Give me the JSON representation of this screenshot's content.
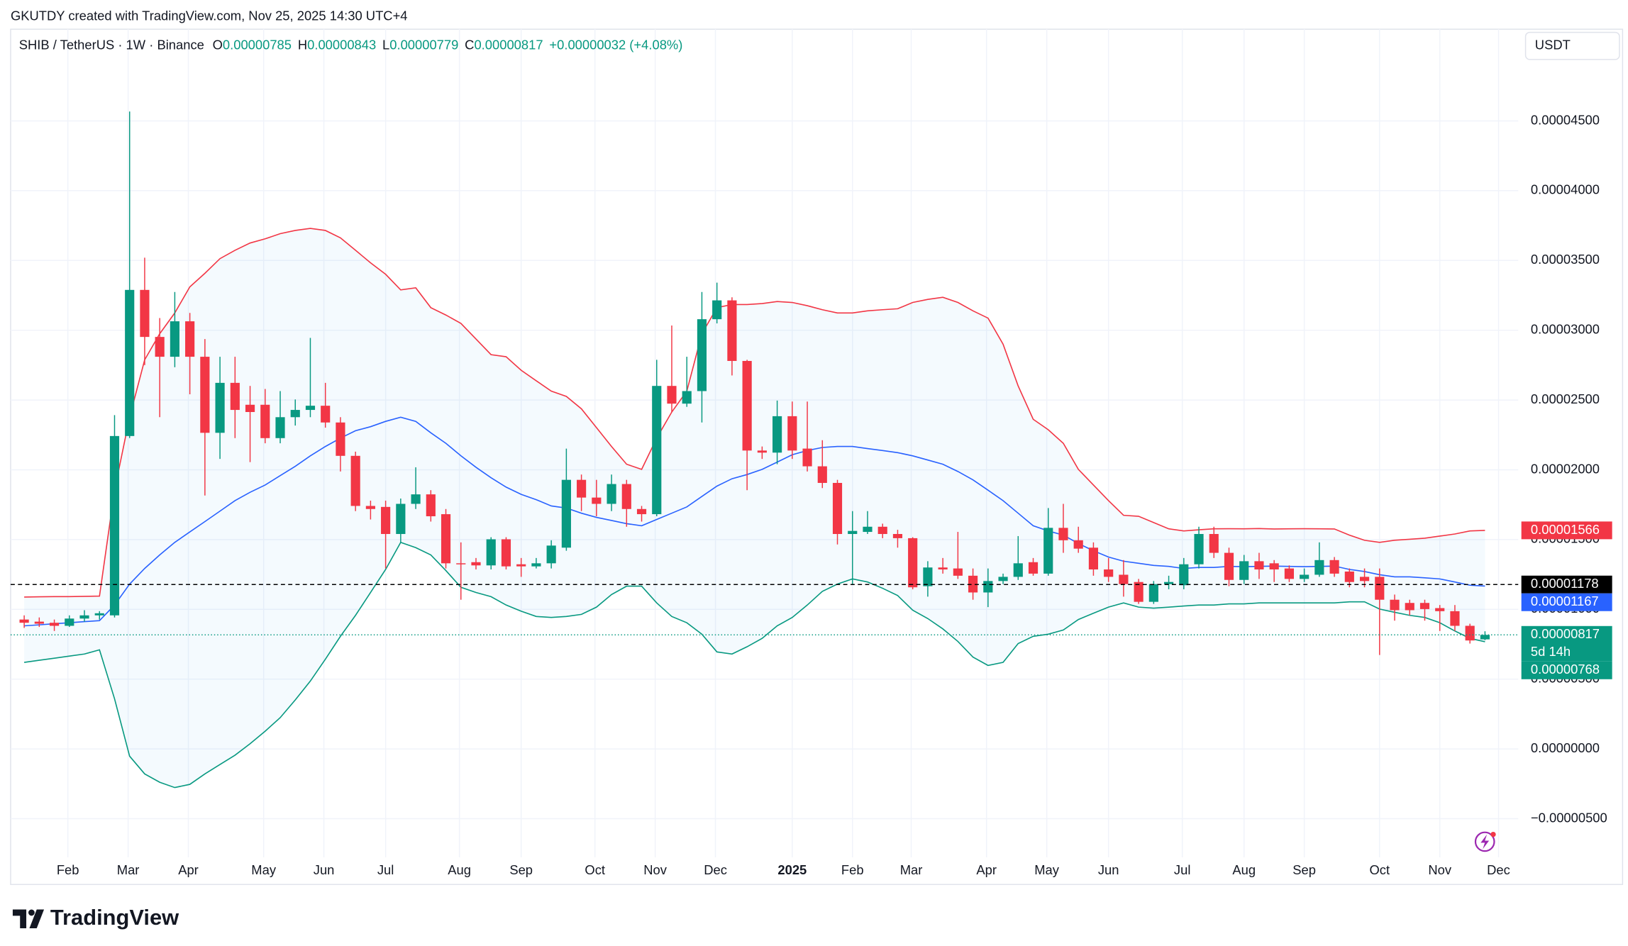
{
  "chart_data": {
    "type": "candlestick",
    "watermark": "GKUTDY created with TradingView.com, Nov 25, 2025 14:30 UTC+4",
    "title": "SHIB / TetherUS · 1W · Binance",
    "ohlc_legend": [
      {
        "key": "O",
        "value": "0.00000785"
      },
      {
        "key": "H",
        "value": "0.00000843"
      },
      {
        "key": "L",
        "value": "0.00000779"
      },
      {
        "key": "C",
        "value": "0.00000817"
      }
    ],
    "change": "+0.00000032 (+4.08%)",
    "currency": "USDT",
    "logo": "TradingView",
    "up_color": "#089981",
    "down_color": "#f23645",
    "xlim": [
      -0.9,
      99
    ],
    "xticks": [
      {
        "value": 2.9,
        "label": "Feb"
      },
      {
        "value": 6.9,
        "label": "Mar"
      },
      {
        "value": 10.9,
        "label": "Apr"
      },
      {
        "value": 15.9,
        "label": "May"
      },
      {
        "value": 19.9,
        "label": "Jun"
      },
      {
        "value": 24.0,
        "label": "Jul"
      },
      {
        "value": 28.9,
        "label": "Aug"
      },
      {
        "value": 33.0,
        "label": "Sep"
      },
      {
        "value": 37.9,
        "label": "Oct"
      },
      {
        "value": 41.9,
        "label": "Nov"
      },
      {
        "value": 45.9,
        "label": "Dec"
      },
      {
        "value": 51.0,
        "label": "2025"
      },
      {
        "value": 55.0,
        "label": "Feb"
      },
      {
        "value": 58.9,
        "label": "Mar"
      },
      {
        "value": 63.9,
        "label": "Apr"
      },
      {
        "value": 67.9,
        "label": "May"
      },
      {
        "value": 72.0,
        "label": "Jun"
      },
      {
        "value": 76.9,
        "label": "Jul"
      },
      {
        "value": 81.0,
        "label": "Aug"
      },
      {
        "value": 85.0,
        "label": "Sep"
      },
      {
        "value": 90.0,
        "label": "Oct"
      },
      {
        "value": 94.0,
        "label": "Nov"
      },
      {
        "value": 97.9,
        "label": "Dec"
      }
    ],
    "ylim": [
      -7.62e-06,
      5.157e-05
    ],
    "yticks": [
      {
        "value": -5e-06,
        "label": "−0.00000500"
      },
      {
        "value": 0,
        "label": "0.00000000"
      },
      {
        "value": 5e-06,
        "label": "0.00000500"
      },
      {
        "value": 1e-05,
        "label": "0.00001000"
      },
      {
        "value": 1.5e-05,
        "label": "0.00001500"
      },
      {
        "value": 2e-05,
        "label": "0.00002000"
      },
      {
        "value": 2.5e-05,
        "label": "0.00002500"
      },
      {
        "value": 3e-05,
        "label": "0.00003000"
      },
      {
        "value": 3.5e-05,
        "label": "0.00003500"
      },
      {
        "value": 4e-05,
        "label": "0.00004000"
      },
      {
        "value": 4.5e-05,
        "label": "0.00004500"
      }
    ],
    "grid": true,
    "open": [
      9.27e-06,
      9.12e-06,
      9.04e-06,
      8.82e-06,
      9.34e-06,
      9.57e-06,
      9.57e-06,
      2.242e-05,
      3.289e-05,
      2.952e-05,
      2.81e-05,
      3.064e-05,
      2.81e-05,
      2.265e-05,
      2.623e-05,
      2.466e-05,
      2.466e-05,
      2.227e-05,
      2.377e-05,
      2.429e-05,
      2.459e-05,
      2.339e-05,
      2.1e-05,
      1.741e-05,
      1.734e-05,
      1.54e-05,
      1.756e-05,
      1.824e-05,
      1.682e-05,
      1.33e-05,
      1.338e-05,
      1.315e-05,
      1.502e-05,
      1.323e-05,
      1.308e-05,
      1.33e-05,
      1.442e-05,
      1.928e-05,
      1.801e-05,
      1.756e-05,
      1.898e-05,
      1.719e-05,
      1.682e-05,
      2.601e-05,
      2.474e-05,
      2.564e-05,
      3.079e-05,
      3.214e-05,
      2.78e-05,
      2.138e-05,
      2.123e-05,
      2.384e-05,
      2.152e-05,
      2.025e-05,
      1.906e-05,
      1.54e-05,
      1.555e-05,
      1.592e-05,
      1.54e-05,
      1.51e-05,
      1.166e-05,
      1.3e-05,
      1.293e-05,
      1.241e-05,
      1.121e-05,
      1.203e-05,
      1.233e-05,
      1.338e-05,
      1.256e-05,
      1.584e-05,
      1.495e-05,
      1.442e-05,
      1.286e-05,
      1.248e-05,
      1.196e-05,
      1.054e-05,
      1.181e-05,
      1.173e-05,
      1.323e-05,
      1.54e-05,
      1.405e-05,
      1.211e-05,
      1.345e-05,
      1.33e-05,
      1.293e-05,
      1.218e-05,
      1.248e-05,
      1.353e-05,
      1.271e-05,
      1.233e-05,
      1.233e-05,
      1.069e-05,
      1.046e-05,
      1.046e-05,
      1.009e-05,
      9.87e-06,
      8.82e-06,
      7.85e-06
    ],
    "high": [
      9.57e-06,
      9.42e-06,
      9.27e-06,
      9.57e-06,
      9.94e-06,
      9.87e-06,
      2.392e-05,
      4.567e-05,
      3.52e-05,
      3.087e-05,
      3.274e-05,
      3.124e-05,
      2.937e-05,
      2.81e-05,
      2.81e-05,
      2.601e-05,
      2.579e-05,
      2.564e-05,
      2.504e-05,
      2.945e-05,
      2.623e-05,
      2.377e-05,
      2.13e-05,
      1.779e-05,
      1.779e-05,
      1.794e-05,
      2.018e-05,
      1.854e-05,
      1.719e-05,
      1.48e-05,
      1.368e-05,
      1.517e-05,
      1.517e-05,
      1.368e-05,
      1.368e-05,
      1.495e-05,
      2.152e-05,
      1.966e-05,
      1.928e-05,
      1.966e-05,
      1.928e-05,
      1.741e-05,
      2.788e-05,
      3.034e-05,
      2.81e-05,
      3.274e-05,
      3.341e-05,
      3.236e-05,
      2.788e-05,
      2.167e-05,
      2.496e-05,
      2.489e-05,
      2.489e-05,
      2.212e-05,
      1.928e-05,
      1.704e-05,
      1.704e-05,
      1.614e-05,
      1.57e-05,
      1.517e-05,
      1.345e-05,
      1.368e-05,
      1.555e-05,
      1.293e-05,
      1.293e-05,
      1.256e-05,
      1.525e-05,
      1.368e-05,
      1.726e-05,
      1.756e-05,
      1.592e-05,
      1.48e-05,
      1.368e-05,
      1.353e-05,
      1.218e-05,
      1.203e-05,
      1.241e-05,
      1.368e-05,
      1.592e-05,
      1.592e-05,
      1.442e-05,
      1.39e-05,
      1.405e-05,
      1.353e-05,
      1.315e-05,
      1.293e-05,
      1.48e-05,
      1.375e-05,
      1.293e-05,
      1.293e-05,
      1.293e-05,
      1.106e-05,
      1.069e-05,
      1.069e-05,
      1.031e-05,
      1.031e-05,
      8.97e-06,
      8.43e-06
    ],
    "low": [
      8.67e-06,
      8.74e-06,
      8.45e-06,
      8.74e-06,
      9.12e-06,
      9.27e-06,
      9.42e-06,
      2.227e-05,
      2.75e-05,
      2.377e-05,
      2.735e-05,
      2.541e-05,
      1.816e-05,
      2.078e-05,
      2.227e-05,
      2.055e-05,
      2.19e-05,
      2.19e-05,
      2.317e-05,
      2.377e-05,
      2.302e-05,
      1.988e-05,
      1.704e-05,
      1.644e-05,
      1.293e-05,
      1.48e-05,
      1.719e-05,
      1.629e-05,
      1.293e-05,
      1.069e-05,
      1.286e-05,
      1.286e-05,
      1.286e-05,
      1.233e-05,
      1.293e-05,
      1.293e-05,
      1.42e-05,
      1.704e-05,
      1.667e-05,
      1.704e-05,
      1.592e-05,
      1.629e-05,
      1.667e-05,
      2.414e-05,
      2.451e-05,
      2.339e-05,
      3.049e-05,
      2.676e-05,
      1.854e-05,
      2.078e-05,
      2.04e-05,
      2.078e-05,
      1.988e-05,
      1.869e-05,
      1.465e-05,
      1.181e-05,
      1.54e-05,
      1.51e-05,
      1.442e-05,
      1.144e-05,
      1.091e-05,
      1.256e-05,
      1.218e-05,
      1.069e-05,
      1.016e-05,
      1.181e-05,
      1.211e-05,
      1.241e-05,
      1.241e-05,
      1.405e-05,
      1.405e-05,
      1.241e-05,
      1.196e-05,
      1.091e-05,
      1.039e-05,
      1.039e-05,
      1.144e-05,
      1.144e-05,
      1.293e-05,
      1.368e-05,
      1.166e-05,
      1.181e-05,
      1.218e-05,
      1.196e-05,
      1.196e-05,
      1.196e-05,
      1.233e-05,
      1.233e-05,
      1.158e-05,
      1.158e-05,
      6.73e-06,
      9.19e-06,
      9.57e-06,
      9.19e-06,
      8.45e-06,
      8.45e-06,
      7.55e-06,
      7.79e-06
    ],
    "close": [
      9.04e-06,
      8.97e-06,
      8.82e-06,
      9.34e-06,
      9.57e-06,
      9.72e-06,
      2.242e-05,
      3.289e-05,
      2.952e-05,
      2.81e-05,
      3.064e-05,
      2.81e-05,
      2.265e-05,
      2.623e-05,
      2.429e-05,
      2.414e-05,
      2.227e-05,
      2.377e-05,
      2.429e-05,
      2.459e-05,
      2.339e-05,
      2.1e-05,
      1.741e-05,
      1.719e-05,
      1.54e-05,
      1.756e-05,
      1.824e-05,
      1.667e-05,
      1.33e-05,
      1.323e-05,
      1.315e-05,
      1.502e-05,
      1.308e-05,
      1.308e-05,
      1.33e-05,
      1.457e-05,
      1.928e-05,
      1.801e-05,
      1.756e-05,
      1.898e-05,
      1.719e-05,
      1.682e-05,
      2.601e-05,
      2.474e-05,
      2.564e-05,
      3.079e-05,
      3.214e-05,
      2.78e-05,
      2.138e-05,
      2.123e-05,
      2.384e-05,
      2.138e-05,
      2.025e-05,
      1.906e-05,
      1.54e-05,
      1.562e-05,
      1.592e-05,
      1.54e-05,
      1.51e-05,
      1.158e-05,
      1.3e-05,
      1.286e-05,
      1.241e-05,
      1.121e-05,
      1.203e-05,
      1.233e-05,
      1.33e-05,
      1.256e-05,
      1.584e-05,
      1.495e-05,
      1.435e-05,
      1.286e-05,
      1.233e-05,
      1.181e-05,
      1.054e-05,
      1.181e-05,
      1.196e-05,
      1.323e-05,
      1.54e-05,
      1.405e-05,
      1.211e-05,
      1.345e-05,
      1.286e-05,
      1.286e-05,
      1.218e-05,
      1.248e-05,
      1.353e-05,
      1.256e-05,
      1.196e-05,
      1.203e-05,
      1.069e-05,
      9.94e-06,
      9.94e-06,
      1.002e-05,
      9.87e-06,
      8.82e-06,
      7.77e-06,
      8.17e-06
    ],
    "band_fill": "#2196f3",
    "series": [
      {
        "color": "#f23645",
        "values": [
          1.088e-05,
          1.09e-05,
          1.091e-05,
          1.091e-05,
          1.093e-05,
          1.095e-05,
          1.854e-05,
          2.377e-05,
          2.788e-05,
          2.975e-05,
          3.124e-05,
          3.311e-05,
          3.408e-05,
          3.513e-05,
          3.573e-05,
          3.625e-05,
          3.655e-05,
          3.692e-05,
          3.715e-05,
          3.73e-05,
          3.715e-05,
          3.662e-05,
          3.573e-05,
          3.483e-05,
          3.401e-05,
          3.289e-05,
          3.304e-05,
          3.162e-05,
          3.109e-05,
          3.049e-05,
          2.937e-05,
          2.825e-05,
          2.81e-05,
          2.713e-05,
          2.638e-05,
          2.564e-05,
          2.526e-05,
          2.437e-05,
          2.302e-05,
          2.167e-05,
          2.04e-05,
          2.003e-05,
          2.227e-05,
          2.414e-05,
          2.564e-05,
          2.975e-05,
          3.162e-05,
          3.184e-05,
          3.184e-05,
          3.191e-05,
          3.206e-05,
          3.199e-05,
          3.176e-05,
          3.147e-05,
          3.124e-05,
          3.124e-05,
          3.139e-05,
          3.147e-05,
          3.154e-05,
          3.199e-05,
          3.221e-05,
          3.236e-05,
          3.199e-05,
          3.139e-05,
          3.087e-05,
          2.9e-05,
          2.601e-05,
          2.362e-05,
          2.287e-05,
          2.19e-05,
          2.003e-05,
          1.891e-05,
          1.779e-05,
          1.674e-05,
          1.667e-05,
          1.622e-05,
          1.577e-05,
          1.562e-05,
          1.57e-05,
          1.577e-05,
          1.578e-05,
          1.577e-05,
          1.579e-05,
          1.576e-05,
          1.577e-05,
          1.578e-05,
          1.577e-05,
          1.576e-05,
          1.532e-05,
          1.495e-05,
          1.48e-05,
          1.495e-05,
          1.502e-05,
          1.51e-05,
          1.525e-05,
          1.54e-05,
          1.562e-05,
          1.566e-05
        ]
      },
      {
        "color": "#2962ff",
        "values": [
          8.82e-06,
          8.89e-06,
          8.97e-06,
          9.04e-06,
          9.12e-06,
          9.19e-06,
          1.031e-05,
          1.181e-05,
          1.293e-05,
          1.39e-05,
          1.48e-05,
          1.555e-05,
          1.629e-05,
          1.704e-05,
          1.779e-05,
          1.839e-05,
          1.891e-05,
          1.958e-05,
          2.025e-05,
          2.1e-05,
          2.167e-05,
          2.227e-05,
          2.28e-05,
          2.309e-05,
          2.347e-05,
          2.377e-05,
          2.347e-05,
          2.265e-05,
          2.19e-05,
          2.1e-05,
          2.018e-05,
          1.943e-05,
          1.876e-05,
          1.824e-05,
          1.786e-05,
          1.741e-05,
          1.726e-05,
          1.689e-05,
          1.659e-05,
          1.637e-05,
          1.614e-05,
          1.599e-05,
          1.644e-05,
          1.689e-05,
          1.734e-05,
          1.809e-05,
          1.883e-05,
          1.936e-05,
          1.966e-05,
          2.003e-05,
          2.055e-05,
          2.108e-05,
          2.138e-05,
          2.16e-05,
          2.167e-05,
          2.167e-05,
          2.152e-05,
          2.138e-05,
          2.123e-05,
          2.1e-05,
          2.07e-05,
          2.04e-05,
          1.988e-05,
          1.928e-05,
          1.854e-05,
          1.779e-05,
          1.689e-05,
          1.599e-05,
          1.562e-05,
          1.532e-05,
          1.472e-05,
          1.42e-05,
          1.375e-05,
          1.345e-05,
          1.33e-05,
          1.315e-05,
          1.308e-05,
          1.293e-05,
          1.3e-05,
          1.3e-05,
          1.308e-05,
          1.306e-05,
          1.308e-05,
          1.31e-05,
          1.308e-05,
          1.306e-05,
          1.308e-05,
          1.31e-05,
          1.286e-05,
          1.271e-05,
          1.248e-05,
          1.233e-05,
          1.233e-05,
          1.226e-05,
          1.218e-05,
          1.196e-05,
          1.173e-05,
          1.167e-05
        ]
      },
      {
        "color": "#089981",
        "values": [
          6.2e-06,
          6.35e-06,
          6.5e-06,
          6.65e-06,
          6.8e-06,
          7.1e-06,
          3.59e-06,
          -5.2e-07,
          -1.79e-06,
          -2.39e-06,
          -2.77e-06,
          -2.54e-06,
          -1.79e-06,
          -1.12e-06,
          -4.5e-07,
          3.7e-07,
          1.27e-06,
          2.24e-06,
          3.51e-06,
          4.86e-06,
          6.43e-06,
          8.07e-06,
          9.57e-06,
          1.121e-05,
          1.286e-05,
          1.48e-05,
          1.442e-05,
          1.39e-05,
          1.278e-05,
          1.158e-05,
          1.121e-05,
          1.091e-05,
          1.031e-05,
          9.87e-06,
          9.49e-06,
          9.42e-06,
          9.49e-06,
          9.64e-06,
          1.016e-05,
          1.106e-05,
          1.166e-05,
          1.166e-05,
          1.046e-05,
          9.49e-06,
          9.04e-06,
          8.22e-06,
          6.95e-06,
          6.8e-06,
          7.32e-06,
          7.92e-06,
          8.82e-06,
          9.42e-06,
          1.031e-05,
          1.129e-05,
          1.181e-05,
          1.218e-05,
          1.196e-05,
          1.151e-05,
          1.099e-05,
          9.94e-06,
          9.34e-06,
          8.6e-06,
          7.7e-06,
          6.58e-06,
          5.98e-06,
          6.2e-06,
          7.55e-06,
          8.07e-06,
          8.22e-06,
          8.52e-06,
          9.27e-06,
          9.72e-06,
          1.016e-05,
          1.046e-05,
          1.016e-05,
          1.009e-05,
          1.016e-05,
          1.024e-05,
          1.031e-05,
          1.031e-05,
          1.039e-05,
          1.039e-05,
          1.046e-05,
          1.046e-05,
          1.046e-05,
          1.046e-05,
          1.046e-05,
          1.046e-05,
          1.054e-05,
          1.054e-05,
          1.002e-05,
          9.79e-06,
          9.57e-06,
          9.42e-06,
          9.04e-06,
          8.45e-06,
          7.92e-06,
          7.68e-06
        ]
      }
    ],
    "price_labels": [
      {
        "value": 1.566e-05,
        "label": "0.00001566",
        "color": "#f23645"
      },
      {
        "value": 1.178e-05,
        "label": "0.00001178",
        "color": "#000000",
        "line": "dashed"
      },
      {
        "value": 1.167e-05,
        "label": "0.00001167",
        "color": "#2962ff"
      },
      {
        "value": 8.17e-06,
        "label": "0.00000817",
        "color": "#089981",
        "line": "dotted",
        "countdown": "5d 14h"
      },
      {
        "value": 7.68e-06,
        "label": "0.00000768",
        "color": "#089981"
      }
    ]
  }
}
